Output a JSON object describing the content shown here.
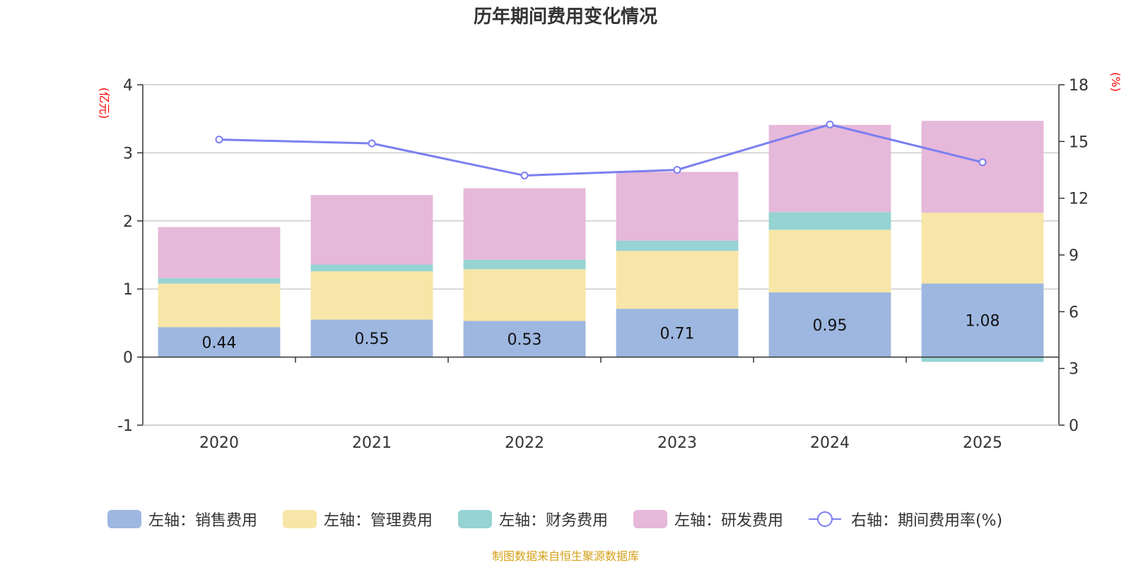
{
  "chart_data": {
    "type": "bar",
    "title": "历年期间费用变化情况",
    "categories": [
      "2020",
      "2021",
      "2022",
      "2023",
      "2024",
      "2025"
    ],
    "left_axis": {
      "unit": "(亿元)",
      "ylim": [
        -1,
        4
      ],
      "ticks": [
        "-1",
        "0",
        "1",
        "2",
        "3",
        "4"
      ]
    },
    "right_axis": {
      "unit": "(%)",
      "ylim": [
        0,
        18
      ],
      "ticks": [
        "0",
        "3",
        "6",
        "9",
        "12",
        "15",
        "18"
      ]
    },
    "series": [
      {
        "name": "左轴：销售费用",
        "axis": "left",
        "kind": "bar",
        "color": "#9db7e0",
        "values": [
          0.44,
          0.55,
          0.53,
          0.71,
          0.95,
          1.08
        ],
        "labels": [
          "0.44",
          "0.55",
          "0.53",
          "0.71",
          "0.95",
          "1.08"
        ]
      },
      {
        "name": "左轴：管理费用",
        "axis": "left",
        "kind": "bar",
        "color": "#f7e6a7",
        "values": [
          0.64,
          0.71,
          0.76,
          0.85,
          0.92,
          1.04
        ]
      },
      {
        "name": "左轴：财务费用",
        "axis": "left",
        "kind": "bar",
        "color": "#96d3d3",
        "values": [
          0.08,
          0.1,
          0.14,
          0.15,
          0.26,
          -0.07
        ]
      },
      {
        "name": "左轴：研发费用",
        "axis": "left",
        "kind": "bar",
        "color": "#e6b8d9",
        "values": [
          0.75,
          1.02,
          1.05,
          1.01,
          1.28,
          1.35
        ]
      },
      {
        "name": "右轴：期间费用率(%)",
        "axis": "right",
        "kind": "line",
        "color": "#7b7ff0",
        "values": [
          15.1,
          14.9,
          13.2,
          13.5,
          15.9,
          13.9
        ]
      }
    ],
    "grid": true,
    "legend": "bottom-center"
  },
  "source_note": "制图数据来自恒生聚源数据库"
}
